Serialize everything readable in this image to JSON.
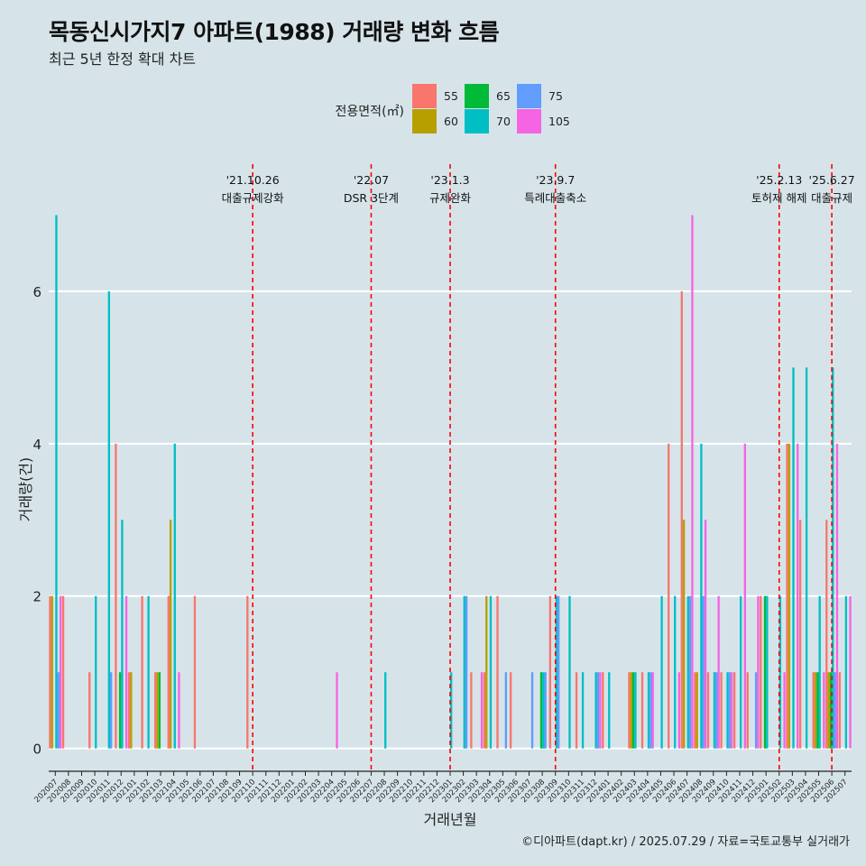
{
  "page": {
    "title": "목동신시가지7 아파트(1988) 거래량 변화 흐름",
    "subtitle": "최근 5년 한정 확대 차트",
    "caption": "©디아파트(dapt.kr) / 2025.07.29 / 자료=국토교통부 실거래가"
  },
  "chart_data": {
    "type": "bar",
    "title": "목동신시가지7 아파트(1988) 거래량 변화 흐름",
    "xlabel": "거래년월",
    "ylabel": "거래량(건)",
    "ylim": [
      -0.3,
      7.1
    ],
    "yticks": [
      0,
      2,
      4,
      6
    ],
    "grid": true,
    "legend": {
      "title": "전용면적(㎡)",
      "position": "top",
      "entries": [
        {
          "name": "55",
          "color": "#F8766D"
        },
        {
          "name": "60",
          "color": "#B79F00"
        },
        {
          "name": "65",
          "color": "#00BA38"
        },
        {
          "name": "70",
          "color": "#00BFC4"
        },
        {
          "name": "75",
          "color": "#619CFF"
        },
        {
          "name": "105",
          "color": "#F564E3"
        }
      ]
    },
    "categories": [
      "202007",
      "202008",
      "202009",
      "202010",
      "202011",
      "202012",
      "202101",
      "202102",
      "202103",
      "202104",
      "202105",
      "202106",
      "202107",
      "202108",
      "202109",
      "202110",
      "202111",
      "202112",
      "202201",
      "202202",
      "202203",
      "202204",
      "202205",
      "202206",
      "202207",
      "202208",
      "202209",
      "202210",
      "202211",
      "202212",
      "202301",
      "202302",
      "202303",
      "202304",
      "202305",
      "202306",
      "202307",
      "202308",
      "202309",
      "202310",
      "202311",
      "202312",
      "202401",
      "202402",
      "202403",
      "202404",
      "202405",
      "202406",
      "202407",
      "202408",
      "202409",
      "202410",
      "202411",
      "202412",
      "202501",
      "202502",
      "202503",
      "202504",
      "202505",
      "202506",
      "202507"
    ],
    "series": [
      {
        "name": "55",
        "values": [
          2,
          2,
          0,
          1,
          0,
          4,
          1,
          2,
          1,
          2,
          0,
          2,
          0,
          0,
          0,
          2,
          0,
          0,
          0,
          0,
          0,
          0,
          0,
          0,
          0,
          0,
          0,
          0,
          0,
          0,
          0,
          0,
          1,
          1,
          2,
          1,
          0,
          0,
          2,
          0,
          1,
          0,
          1,
          0,
          1,
          1,
          0,
          4,
          6,
          1,
          1,
          1,
          1,
          1,
          2,
          0,
          4,
          3,
          1,
          3,
          1
        ]
      },
      {
        "name": "60",
        "values": [
          2,
          0,
          0,
          0,
          0,
          0,
          1,
          0,
          1,
          3,
          0,
          0,
          0,
          0,
          0,
          0,
          0,
          0,
          0,
          0,
          0,
          0,
          0,
          0,
          0,
          0,
          0,
          0,
          0,
          0,
          0,
          0,
          0,
          2,
          0,
          0,
          0,
          0,
          0,
          0,
          0,
          0,
          0,
          0,
          1,
          0,
          0,
          0,
          3,
          1,
          0,
          0,
          0,
          0,
          0,
          0,
          4,
          0,
          1,
          1,
          0
        ]
      },
      {
        "name": "65",
        "values": [
          0,
          0,
          0,
          0,
          0,
          1,
          0,
          0,
          1,
          0,
          0,
          0,
          0,
          0,
          0,
          0,
          0,
          0,
          0,
          0,
          0,
          0,
          0,
          0,
          0,
          0,
          0,
          0,
          0,
          0,
          0,
          0,
          0,
          0,
          0,
          0,
          0,
          1,
          0,
          0,
          0,
          0,
          0,
          0,
          1,
          0,
          0,
          0,
          0,
          0,
          0,
          0,
          0,
          0,
          2,
          0,
          0,
          0,
          1,
          1,
          0
        ]
      },
      {
        "name": "70",
        "values": [
          7,
          0,
          0,
          2,
          6,
          3,
          0,
          2,
          0,
          4,
          0,
          0,
          0,
          0,
          0,
          0,
          0,
          0,
          0,
          0,
          0,
          0,
          0,
          0,
          0,
          1,
          0,
          0,
          0,
          0,
          1,
          2,
          0,
          2,
          0,
          0,
          0,
          1,
          2,
          2,
          1,
          1,
          1,
          0,
          1,
          1,
          2,
          2,
          2,
          4,
          1,
          1,
          2,
          0,
          2,
          2,
          5,
          5,
          2,
          5,
          2
        ]
      },
      {
        "name": "75",
        "values": [
          1,
          0,
          0,
          0,
          1,
          0,
          0,
          0,
          0,
          0,
          0,
          0,
          0,
          0,
          0,
          0,
          0,
          0,
          0,
          0,
          0,
          0,
          0,
          0,
          0,
          0,
          0,
          0,
          0,
          0,
          0,
          2,
          0,
          0,
          1,
          0,
          1,
          1,
          2,
          0,
          0,
          1,
          0,
          0,
          0,
          1,
          0,
          0,
          2,
          2,
          1,
          1,
          0,
          1,
          0,
          0,
          0,
          0,
          0,
          1,
          0
        ]
      },
      {
        "name": "105",
        "values": [
          2,
          0,
          0,
          0,
          0,
          2,
          0,
          0,
          0,
          1,
          0,
          0,
          0,
          0,
          0,
          0,
          0,
          0,
          0,
          0,
          0,
          1,
          0,
          0,
          0,
          0,
          0,
          0,
          0,
          0,
          0,
          0,
          1,
          0,
          0,
          0,
          0,
          0,
          0,
          0,
          0,
          1,
          0,
          0,
          0,
          1,
          0,
          1,
          7,
          3,
          2,
          1,
          4,
          2,
          0,
          1,
          4,
          0,
          1,
          4,
          2
        ]
      }
    ],
    "annotations": [
      {
        "category": "202110",
        "date": "'21.10.26",
        "label": "대출규제강화"
      },
      {
        "category": "202207",
        "date": "'22.07",
        "label": "DSR 3단계"
      },
      {
        "category": "202301",
        "date": "'23.1.3",
        "label": "규제완화"
      },
      {
        "category": "202309",
        "date": "'23.9.7",
        "label": "특례대출축소"
      },
      {
        "category": "202502",
        "date": "'25.2.13",
        "label": "토허제 해제"
      },
      {
        "category": "202506",
        "date": "'25.6.27",
        "label": "대출규제"
      }
    ],
    "annotation_color": "#FF0000"
  }
}
